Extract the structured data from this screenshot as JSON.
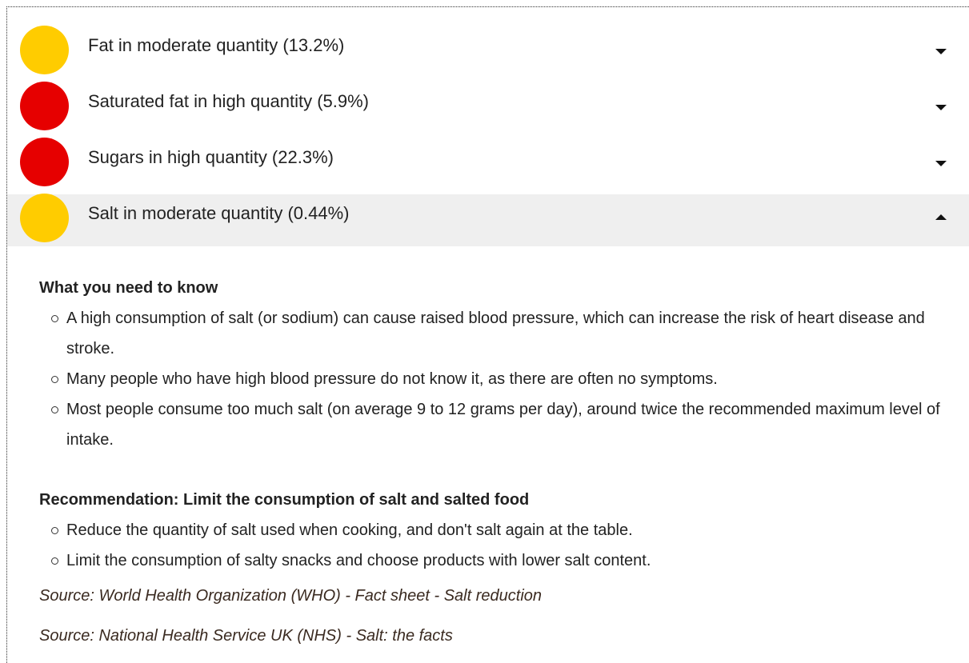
{
  "items": [
    {
      "label": "Fat in moderate quantity (13.2%)",
      "color": "#ffcc00",
      "expanded": false
    },
    {
      "label": "Saturated fat in high quantity (5.9%)",
      "color": "#e60000",
      "expanded": false
    },
    {
      "label": "Sugars in high quantity (22.3%)",
      "color": "#e60000",
      "expanded": false
    },
    {
      "label": "Salt in moderate quantity (0.44%)",
      "color": "#ffcc00",
      "expanded": true
    }
  ],
  "panel": {
    "sections": [
      {
        "heading": "What you need to know",
        "bullets": [
          "A high consumption of salt (or sodium) can cause raised blood pressure, which can increase the risk of heart disease and stroke.",
          "Many people who have high blood pressure do not know it, as there are often no symptoms.",
          "Most people consume too much salt (on average 9 to 12 grams per day), around twice the recommended maximum level of intake."
        ]
      },
      {
        "heading": "Recommendation: Limit the consumption of salt and salted food",
        "bullets": [
          "Reduce the quantity of salt used when cooking, and don't salt again at the table.",
          "Limit the consumption of salty snacks and choose products with lower salt content."
        ]
      }
    ],
    "sources": [
      "Source: World Health Organization (WHO) - Fact sheet - Salt reduction",
      "Source: National Health Service UK (NHS) - Salt: the facts"
    ]
  }
}
